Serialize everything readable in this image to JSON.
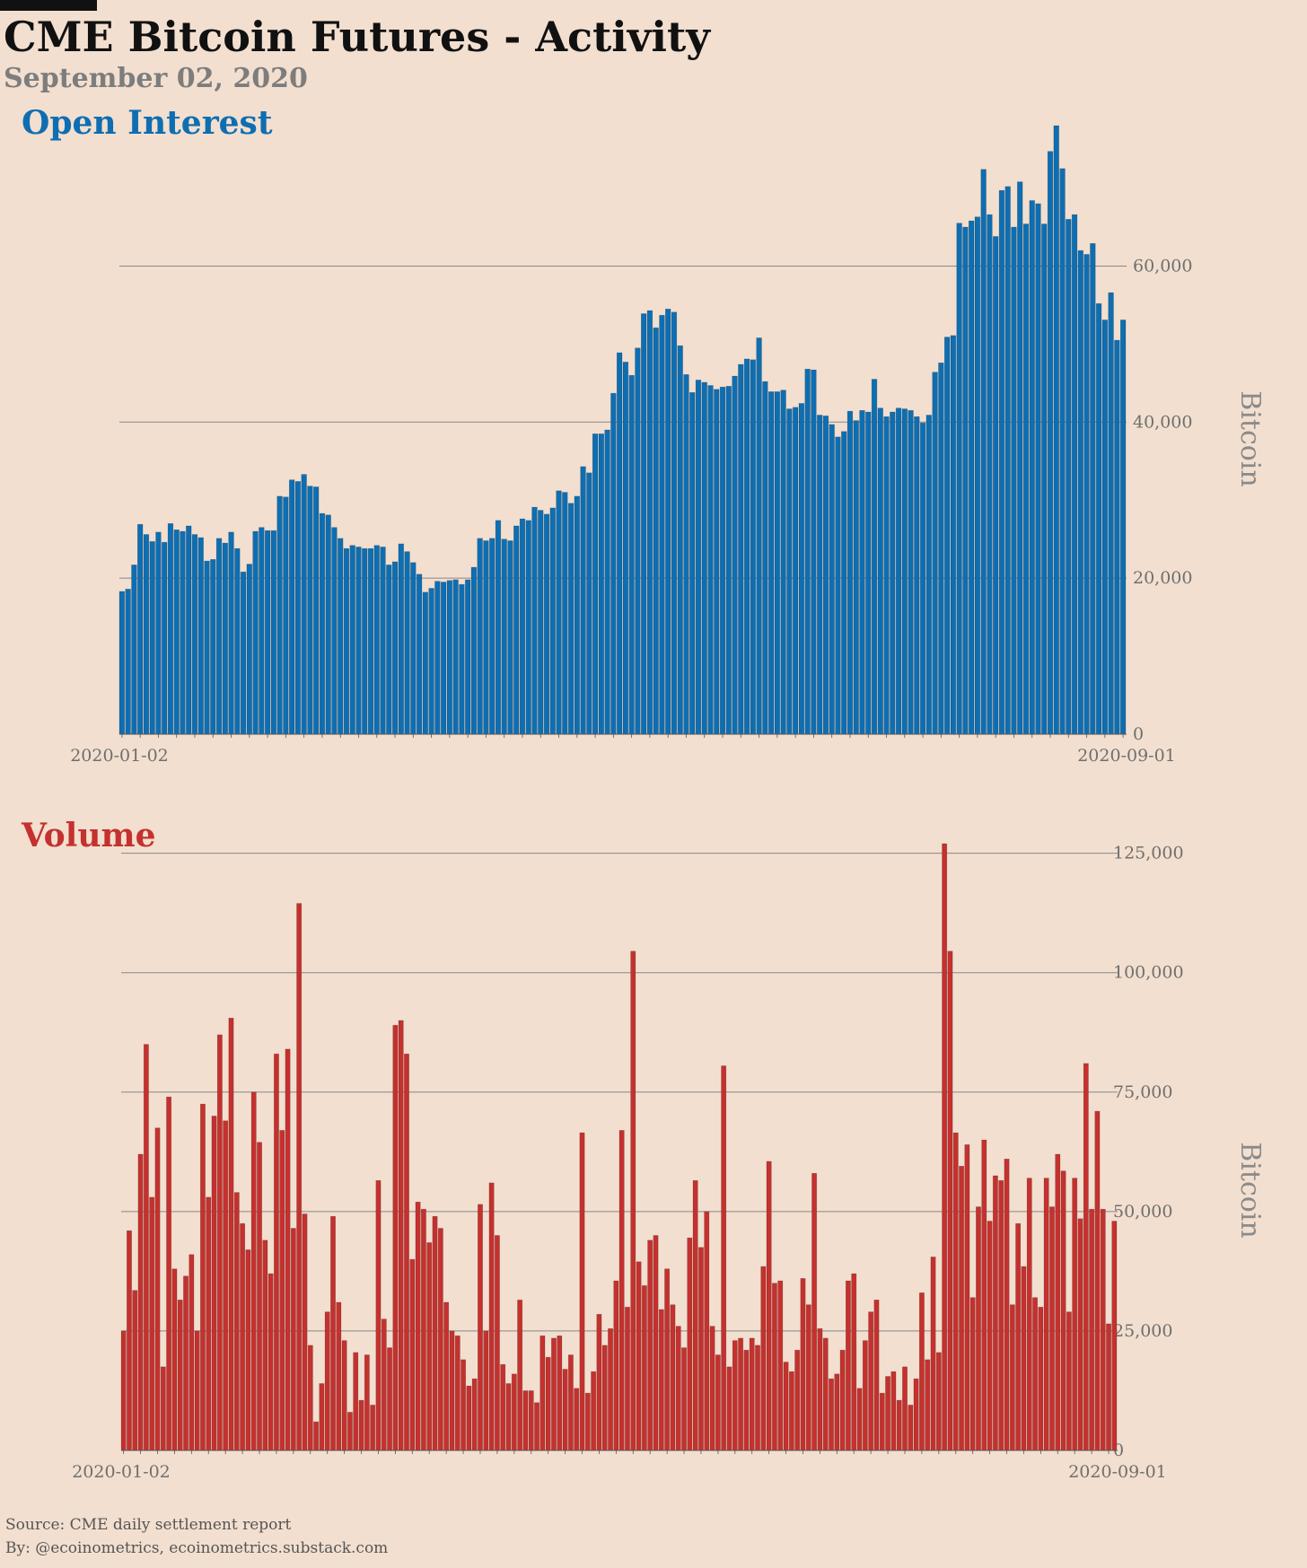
{
  "header": {
    "title": "CME Bitcoin Futures - Activity",
    "subtitle": "September 02, 2020"
  },
  "footer": {
    "source": "Source: CME daily settlement report",
    "byline": "By: @ecoinometrics, ecoinometrics.substack.com"
  },
  "colors": {
    "background": "#f2dfcf",
    "open_interest": "#0e6eb2",
    "volume": "#c4312e",
    "grid": "#888888",
    "axis_text": "#6f6f6f"
  },
  "chart_data": [
    {
      "type": "bar",
      "title": "Open Interest",
      "ylabel": "Bitcoin",
      "ylim": [
        0,
        78000
      ],
      "yticks": [
        0,
        20000,
        40000,
        60000
      ],
      "ytick_labels": [
        "0",
        "20,000",
        "40,000",
        "60,000"
      ],
      "xtick_labels": [
        "2020-01-02",
        "2020-09-01"
      ],
      "x_start": "2020-01-02",
      "x_end": "2020-09-01",
      "grid": true,
      "series": [
        {
          "values": [
            18300,
            18600,
            21700,
            26900,
            25600,
            24700,
            25900,
            24600,
            27000,
            26200,
            26000,
            26700,
            25600,
            25200,
            22200,
            22400,
            25100,
            24500,
            25900,
            23800,
            20800,
            21800,
            26000,
            26500,
            26100,
            26100,
            30500,
            30400,
            32600,
            32400,
            33300,
            31800,
            31700,
            28300,
            28100,
            26500,
            25100,
            23800,
            24200,
            24000,
            23800,
            23800,
            24200,
            24000,
            21700,
            22100,
            24400,
            23400,
            22000,
            20500,
            18200,
            18700,
            19600,
            19500,
            19700,
            19800,
            19200,
            19800,
            21400,
            25100,
            24800,
            25100,
            27400,
            25000,
            24800,
            26700,
            27600,
            27400,
            29100,
            28700,
            28200,
            29000,
            31200,
            31000,
            29600,
            30500,
            34300,
            33500,
            38500,
            38500,
            39000,
            43700,
            48900,
            47700,
            46000,
            49500,
            53900,
            54300,
            52100,
            53700,
            54500,
            54100,
            49800,
            46100,
            43800,
            45400,
            45100,
            44700,
            44200,
            44500,
            44600,
            45900,
            47400,
            48100,
            48000,
            50800,
            45200,
            43900,
            43900,
            44100,
            41700,
            41900,
            42400,
            46800,
            46700,
            40900,
            40800,
            39700,
            38100,
            38800,
            41400,
            40200,
            41500,
            41300,
            45500,
            41800,
            40700,
            41300,
            41800,
            41700,
            41500,
            40700,
            39900,
            40900,
            46400,
            47600,
            50900,
            51100,
            65500,
            65000,
            65800,
            66300,
            72400,
            66600,
            63800,
            69700,
            70200,
            65000,
            70800,
            65400,
            68400,
            68000,
            65400,
            74700,
            78000,
            72500,
            66000,
            66600,
            62000,
            61500,
            62900,
            55200,
            53100,
            56600,
            50500,
            53100
          ]
        }
      ]
    },
    {
      "type": "bar",
      "title": "Volume",
      "ylabel": "Bitcoin",
      "ylim": [
        0,
        127000
      ],
      "yticks": [
        0,
        25000,
        50000,
        75000,
        100000,
        125000
      ],
      "ytick_labels": [
        "0",
        "25,000",
        "50,000",
        "75,000",
        "100,000",
        "125,000"
      ],
      "xtick_labels": [
        "2020-01-02",
        "2020-09-01"
      ],
      "x_start": "2020-01-02",
      "x_end": "2020-09-01",
      "grid": true,
      "series": [
        {
          "values": [
            25000,
            46000,
            33500,
            62000,
            85000,
            53000,
            67500,
            17500,
            74000,
            38000,
            31500,
            36500,
            41000,
            25000,
            72500,
            53000,
            70000,
            87000,
            69000,
            90500,
            54000,
            47500,
            42000,
            75000,
            64500,
            44000,
            37000,
            83000,
            67000,
            84000,
            46500,
            114500,
            49500,
            22000,
            6000,
            14000,
            29000,
            49000,
            31000,
            23000,
            8000,
            20500,
            10500,
            20000,
            9500,
            56500,
            27500,
            21500,
            89000,
            90000,
            83000,
            40000,
            52000,
            50500,
            43500,
            49000,
            46500,
            31000,
            25000,
            24000,
            19000,
            13500,
            15000,
            51500,
            25000,
            56000,
            45000,
            18000,
            14000,
            16000,
            31500,
            12500,
            12500,
            10000,
            24000,
            19500,
            23500,
            24000,
            17000,
            20000,
            13000,
            66500,
            12000,
            16500,
            28500,
            22000,
            25500,
            35500,
            67000,
            30000,
            104500,
            39500,
            34500,
            44000,
            45000,
            29500,
            38000,
            30500,
            26000,
            21500,
            44500,
            56500,
            42500,
            50000,
            26000,
            20000,
            80500,
            17500,
            23000,
            23500,
            21000,
            23500,
            22000,
            38500,
            60500,
            35000,
            35500,
            18500,
            16500,
            21000,
            36000,
            30500,
            58000,
            25500,
            23500,
            15000,
            16000,
            21000,
            35500,
            37000,
            13000,
            23000,
            29000,
            31500,
            12000,
            15500,
            16500,
            10500,
            17500,
            9500,
            15000,
            33000,
            19000,
            40500,
            20500,
            127000,
            104500,
            66500,
            59500,
            64000,
            32000,
            51000,
            65000,
            48000,
            57500,
            56500,
            61000,
            30500,
            47500,
            38500,
            57000,
            32000,
            30000,
            57000,
            51000,
            62000,
            58500,
            29000,
            57000,
            48500,
            81000,
            50500,
            71000,
            50500,
            26500,
            48000
          ]
        }
      ]
    }
  ]
}
